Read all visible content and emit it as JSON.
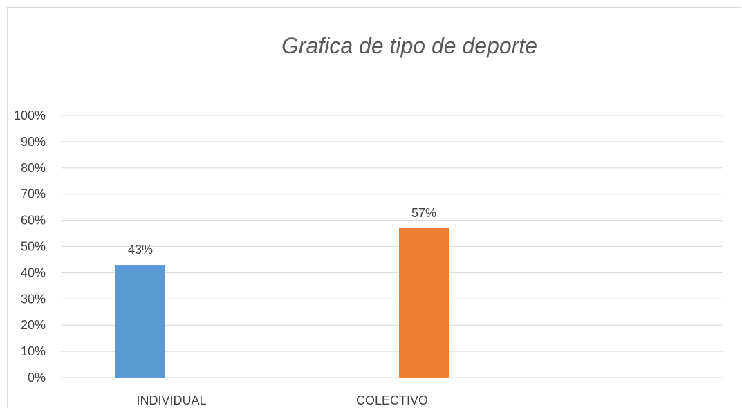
{
  "chart_data": {
    "type": "bar",
    "title": "Grafica de tipo de deporte",
    "categories": [
      "INDIVIDUAL",
      "COLECTIVO"
    ],
    "values": [
      43,
      57
    ],
    "data_labels": [
      "43%",
      "57%"
    ],
    "bar_colors": [
      "#5b9bd5",
      "#ed7d31"
    ],
    "xlabel": "",
    "ylabel": "",
    "ylim": [
      0,
      100
    ],
    "yticks": [
      "0%",
      "10%",
      "20%",
      "30%",
      "40%",
      "50%",
      "60%",
      "70%",
      "80%",
      "90%",
      "100%"
    ],
    "grid": true,
    "legend": "none"
  }
}
